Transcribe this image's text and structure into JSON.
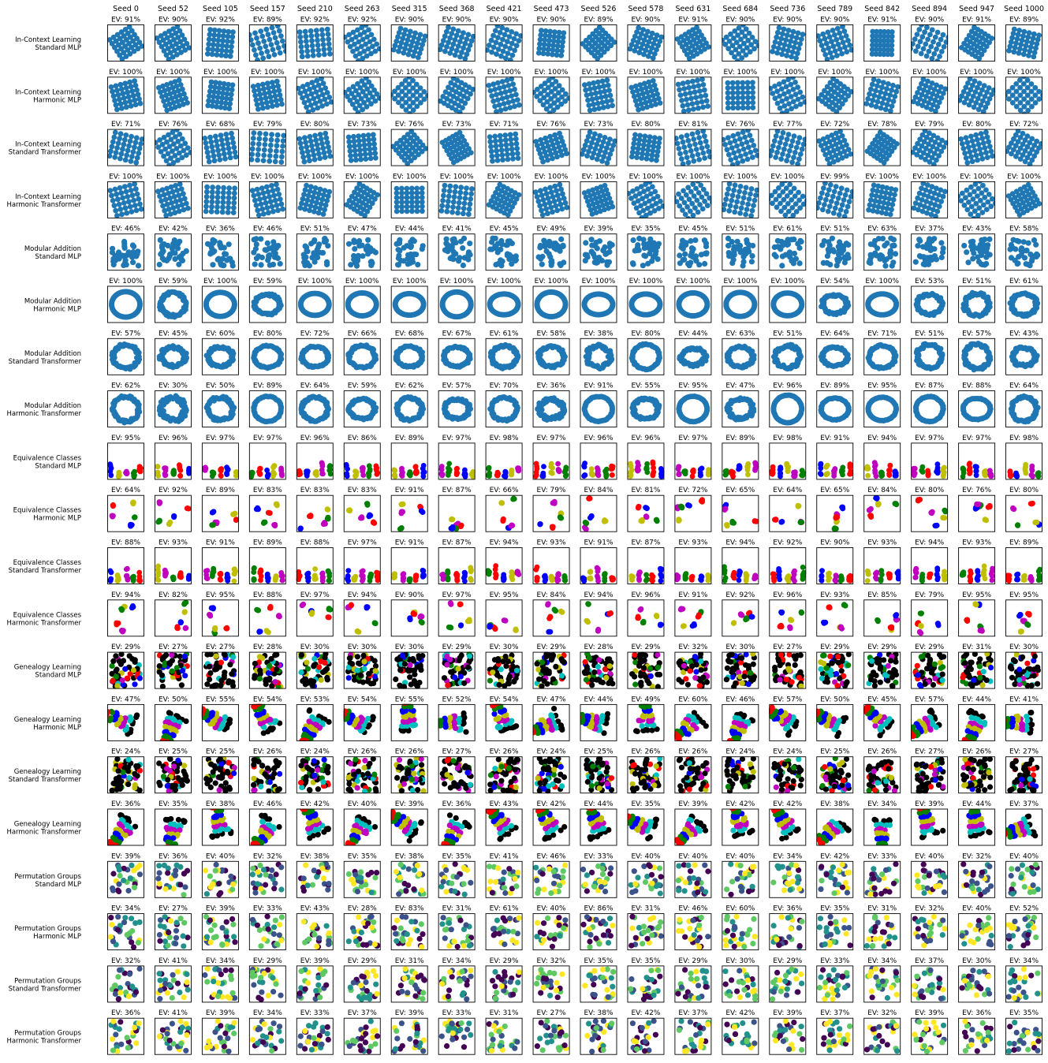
{
  "chart_data": {
    "type": "scatter",
    "grid": false,
    "columns": [
      {
        "label": "Seed 0",
        "seed": 0
      },
      {
        "label": "Seed 52",
        "seed": 52
      },
      {
        "label": "Seed 105",
        "seed": 105
      },
      {
        "label": "Seed 157",
        "seed": 157
      },
      {
        "label": "Seed 210",
        "seed": 210
      },
      {
        "label": "Seed 263",
        "seed": 263
      },
      {
        "label": "Seed 315",
        "seed": 315
      },
      {
        "label": "Seed 368",
        "seed": 368
      },
      {
        "label": "Seed 421",
        "seed": 421
      },
      {
        "label": "Seed 473",
        "seed": 473
      },
      {
        "label": "Seed 526",
        "seed": 526
      },
      {
        "label": "Seed 578",
        "seed": 578
      },
      {
        "label": "Seed 631",
        "seed": 631
      },
      {
        "label": "Seed 684",
        "seed": 684
      },
      {
        "label": "Seed 736",
        "seed": 736
      },
      {
        "label": "Seed 789",
        "seed": 789
      },
      {
        "label": "Seed 842",
        "seed": 842
      },
      {
        "label": "Seed 894",
        "seed": 894
      },
      {
        "label": "Seed 947",
        "seed": 947
      },
      {
        "label": "Seed 1000",
        "seed": 1000
      }
    ],
    "rows": [
      {
        "task": "In-Context Learning",
        "model": "Standard MLP",
        "pattern": "lattice",
        "colors": [
          "#1f77b4"
        ],
        "ev": [
          91,
          90,
          92,
          89,
          92,
          92,
          90,
          90,
          90,
          90,
          89,
          90,
          91,
          90,
          90,
          90,
          91,
          90,
          91,
          89
        ]
      },
      {
        "task": "In-Context Learning",
        "model": "Harmonic MLP",
        "pattern": "lattice",
        "colors": [
          "#1f77b4"
        ],
        "ev": [
          100,
          100,
          100,
          100,
          100,
          100,
          100,
          100,
          100,
          100,
          100,
          100,
          100,
          100,
          100,
          100,
          100,
          100,
          100,
          100
        ]
      },
      {
        "task": "In-Context Learning",
        "model": "Standard Transformer",
        "pattern": "lattice",
        "colors": [
          "#1f77b4"
        ],
        "ev": [
          71,
          76,
          68,
          79,
          80,
          73,
          76,
          73,
          71,
          76,
          73,
          80,
          81,
          76,
          77,
          72,
          78,
          79,
          80,
          72
        ]
      },
      {
        "task": "In-Context Learning",
        "model": "Harmonic Transformer",
        "pattern": "lattice",
        "colors": [
          "#1f77b4"
        ],
        "ev": [
          100,
          100,
          100,
          100,
          100,
          100,
          100,
          100,
          100,
          100,
          100,
          100,
          100,
          100,
          100,
          99,
          100,
          100,
          100,
          100
        ]
      },
      {
        "task": "Modular Addition",
        "model": "Standard MLP",
        "pattern": "blob",
        "colors": [
          "#1f77b4"
        ],
        "ev": [
          46,
          42,
          36,
          46,
          51,
          47,
          44,
          41,
          45,
          49,
          39,
          35,
          45,
          51,
          61,
          51,
          63,
          37,
          43,
          58
        ]
      },
      {
        "task": "Modular Addition",
        "model": "Harmonic MLP",
        "pattern": "ring",
        "colors": [
          "#1f77b4"
        ],
        "ev": [
          100,
          59,
          100,
          59,
          100,
          100,
          100,
          100,
          100,
          100,
          100,
          100,
          100,
          100,
          100,
          54,
          100,
          53,
          51,
          61
        ]
      },
      {
        "task": "Modular Addition",
        "model": "Standard Transformer",
        "pattern": "ring",
        "colors": [
          "#1f77b4"
        ],
        "ev": [
          57,
          45,
          60,
          80,
          72,
          66,
          68,
          67,
          61,
          58,
          38,
          80,
          44,
          63,
          51,
          64,
          71,
          51,
          57,
          43
        ]
      },
      {
        "task": "Modular Addition",
        "model": "Harmonic Transformer",
        "pattern": "ring",
        "colors": [
          "#1f77b4"
        ],
        "ev": [
          62,
          30,
          50,
          89,
          64,
          59,
          62,
          57,
          70,
          36,
          91,
          55,
          95,
          47,
          96,
          89,
          95,
          87,
          88,
          64
        ]
      },
      {
        "task": "Equivalence Classes",
        "model": "Standard MLP",
        "pattern": "columns",
        "colors": [
          "#0000ff",
          "#bfbf00",
          "#bf00bf",
          "#008000",
          "#ff0000"
        ],
        "ev": [
          95,
          96,
          97,
          97,
          96,
          86,
          89,
          97,
          98,
          97,
          96,
          96,
          97,
          89,
          98,
          91,
          94,
          97,
          97,
          98
        ]
      },
      {
        "task": "Equivalence Classes",
        "model": "Harmonic MLP",
        "pattern": "dots",
        "colors": [
          "#0000ff",
          "#bfbf00",
          "#bf00bf",
          "#008000",
          "#ff0000"
        ],
        "ev": [
          64,
          92,
          89,
          83,
          83,
          83,
          91,
          87,
          66,
          79,
          84,
          81,
          72,
          65,
          64,
          65,
          84,
          80,
          76,
          80
        ]
      },
      {
        "task": "Equivalence Classes",
        "model": "Standard Transformer",
        "pattern": "columns",
        "colors": [
          "#0000ff",
          "#bfbf00",
          "#bf00bf",
          "#008000",
          "#ff0000"
        ],
        "ev": [
          88,
          93,
          91,
          89,
          88,
          97,
          91,
          87,
          94,
          93,
          91,
          87,
          93,
          94,
          92,
          90,
          93,
          94,
          93,
          89
        ]
      },
      {
        "task": "Equivalence Classes",
        "model": "Harmonic Transformer",
        "pattern": "dots",
        "colors": [
          "#0000ff",
          "#bfbf00",
          "#bf00bf",
          "#008000",
          "#ff0000"
        ],
        "ev": [
          94,
          82,
          95,
          88,
          97,
          94,
          90,
          97,
          95,
          84,
          94,
          96,
          91,
          92,
          96,
          93,
          85,
          79,
          95,
          95
        ]
      },
      {
        "task": "Genealogy Learning",
        "model": "Standard MLP",
        "pattern": "mass",
        "colors": [
          "#000000",
          "#00bfbf",
          "#bf00bf",
          "#bfbf00",
          "#0000ff",
          "#008000",
          "#ff0000"
        ],
        "ev": [
          29,
          27,
          27,
          28,
          30,
          30,
          30,
          29,
          30,
          29,
          28,
          29,
          32,
          30,
          27,
          29,
          29,
          29,
          31,
          30
        ]
      },
      {
        "task": "Genealogy Learning",
        "model": "Harmonic MLP",
        "pattern": "bands",
        "colors": [
          "#000000",
          "#00bfbf",
          "#bf00bf",
          "#bfbf00",
          "#0000ff",
          "#008000",
          "#ff0000"
        ],
        "ev": [
          47,
          50,
          55,
          54,
          53,
          54,
          55,
          52,
          54,
          47,
          44,
          49,
          60,
          46,
          57,
          50,
          45,
          57,
          44,
          41
        ]
      },
      {
        "task": "Genealogy Learning",
        "model": "Standard Transformer",
        "pattern": "mass",
        "colors": [
          "#000000",
          "#00bfbf",
          "#bf00bf",
          "#bfbf00",
          "#0000ff",
          "#008000",
          "#ff0000"
        ],
        "ev": [
          24,
          25,
          25,
          26,
          24,
          26,
          26,
          27,
          26,
          24,
          25,
          26,
          26,
          24,
          24,
          25,
          26,
          27,
          26,
          27
        ]
      },
      {
        "task": "Genealogy Learning",
        "model": "Harmonic Transformer",
        "pattern": "bands",
        "colors": [
          "#000000",
          "#00bfbf",
          "#bf00bf",
          "#bfbf00",
          "#0000ff",
          "#008000",
          "#ff0000"
        ],
        "ev": [
          36,
          35,
          38,
          46,
          42,
          40,
          39,
          36,
          43,
          42,
          44,
          35,
          39,
          42,
          42,
          38,
          34,
          39,
          44,
          37
        ]
      },
      {
        "task": "Permutation Groups",
        "model": "Standard MLP",
        "pattern": "scatter",
        "colors": [
          "#440154",
          "#3b528b",
          "#21918c",
          "#5ec962",
          "#fde725"
        ],
        "ev": [
          39,
          36,
          40,
          32,
          38,
          35,
          38,
          35,
          41,
          46,
          33,
          40,
          40,
          40,
          34,
          42,
          33,
          40,
          32,
          40
        ]
      },
      {
        "task": "Permutation Groups",
        "model": "Harmonic MLP",
        "pattern": "scatter",
        "colors": [
          "#440154",
          "#3b528b",
          "#21918c",
          "#5ec962",
          "#fde725"
        ],
        "ev": [
          34,
          27,
          39,
          33,
          43,
          28,
          83,
          31,
          61,
          40,
          86,
          31,
          46,
          60,
          36,
          35,
          31,
          32,
          40,
          52
        ]
      },
      {
        "task": "Permutation Groups",
        "model": "Standard Transformer",
        "pattern": "scatter",
        "colors": [
          "#440154",
          "#3b528b",
          "#21918c",
          "#5ec962",
          "#fde725"
        ],
        "ev": [
          32,
          41,
          34,
          29,
          39,
          29,
          31,
          34,
          29,
          32,
          35,
          35,
          29,
          30,
          29,
          33,
          34,
          37,
          30,
          34
        ]
      },
      {
        "task": "Permutation Groups",
        "model": "Harmonic Transformer",
        "pattern": "scatter",
        "colors": [
          "#440154",
          "#3b528b",
          "#21918c",
          "#5ec962",
          "#fde725"
        ],
        "ev": [
          36,
          41,
          39,
          34,
          33,
          37,
          39,
          33,
          31,
          27,
          38,
          42,
          37,
          42,
          39,
          37,
          32,
          39,
          36,
          35
        ]
      }
    ]
  }
}
